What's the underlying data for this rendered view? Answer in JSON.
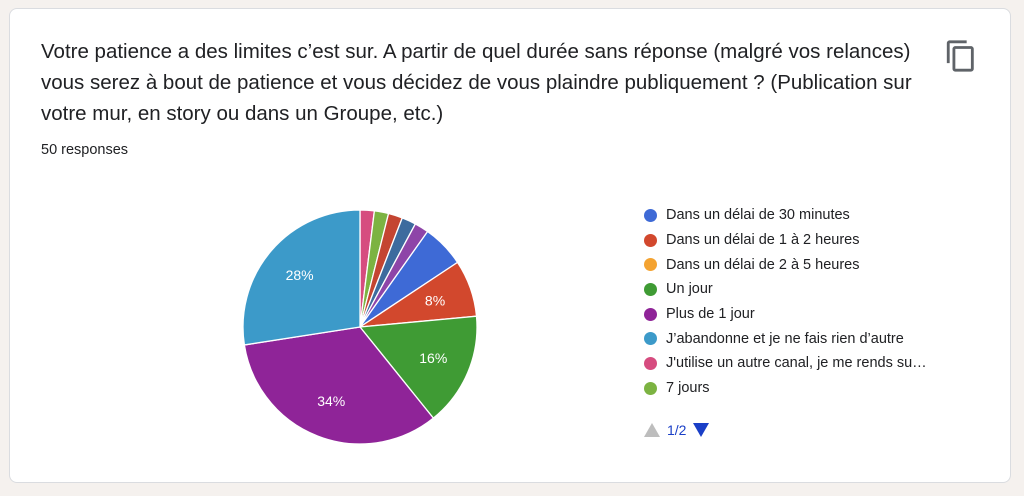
{
  "question": "Votre patience a des limites c’est sur. A partir de quel durée sans réponse (malgré vos relances) vous serez à bout de patience et vous décidez de vous plaindre publiquement ? (Publication sur votre mur, en story ou dans un Groupe, etc.)",
  "responses_label": "50 responses",
  "copy_icon": "copy-icon",
  "pager": {
    "label": "1/2",
    "prev_icon": "triangle-up-icon",
    "next_icon": "triangle-down-icon"
  },
  "chart_data": {
    "type": "pie",
    "start": "top, clockwise",
    "slices": [
      {
        "label": "J'utilise un autre canal, je me rends sur place",
        "value": 2,
        "color": "#d64c7f",
        "show_label": false
      },
      {
        "label": "7 jours",
        "value": 2,
        "color": "#7cb342",
        "show_label": false
      },
      {
        "label": "",
        "value": 2,
        "color": "#c44531",
        "show_label": false
      },
      {
        "label": "",
        "value": 2,
        "color": "#3d6b9e",
        "show_label": false
      },
      {
        "label": "",
        "value": 2,
        "color": "#8e45a8",
        "show_label": false
      },
      {
        "label": "Dans un délai de 30 minutes",
        "value": 6,
        "color": "#3e6ad6",
        "show_label": false
      },
      {
        "label": "Dans un délai de 1 à 2 heures",
        "value": 8,
        "color": "#d2482d",
        "show_label": true,
        "text": "8%"
      },
      {
        "label": "Un jour",
        "value": 16,
        "color": "#3f9b34",
        "show_label": true,
        "text": "16%"
      },
      {
        "label": "Plus de 1 jour",
        "value": 34,
        "color": "#8f2498",
        "show_label": true,
        "text": "34%"
      },
      {
        "label": "J’abandonne et je ne fais rien d’autre",
        "value": 28,
        "color": "#3c9ac9",
        "show_label": true,
        "text": "28%"
      }
    ],
    "legend": [
      {
        "label": "Dans un délai de 30 minutes",
        "color": "#3e6ad6"
      },
      {
        "label": "Dans un délai de 1 à 2 heures",
        "color": "#d2482d"
      },
      {
        "label": "Dans un délai de 2 à 5 heures",
        "color": "#f4a331"
      },
      {
        "label": "Un jour",
        "color": "#3f9b34"
      },
      {
        "label": "Plus de 1 jour",
        "color": "#8f2498"
      },
      {
        "label": "J’abandonne et je ne fais rien d’autre",
        "color": "#3c9ac9"
      },
      {
        "label": "J'utilise un autre canal, je me rends su…",
        "color": "#d64c7f"
      },
      {
        "label": "7 jours",
        "color": "#7cb342"
      }
    ],
    "legend_position": "right"
  }
}
